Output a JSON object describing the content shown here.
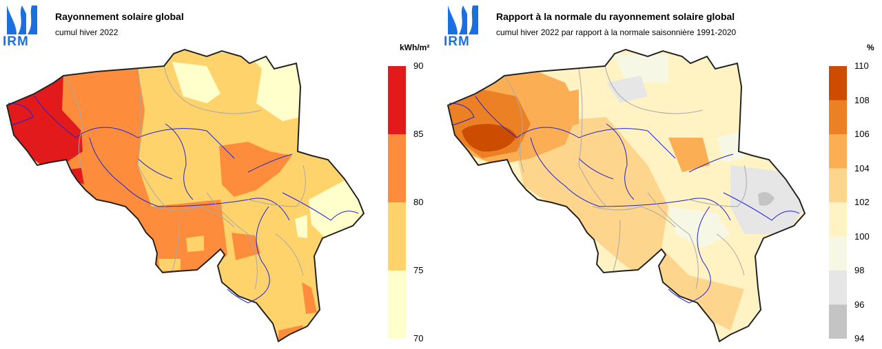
{
  "left": {
    "logo_text": "IRM",
    "title": "Rayonnement solaire global",
    "subtitle": "cumul hiver 2022",
    "unit": "kWh/m²",
    "legend": {
      "ticks": [
        "90",
        "85",
        "80",
        "75",
        "70"
      ],
      "colors": [
        "#e31a1c",
        "#fd8d3c",
        "#fed36b",
        "#ffffcc"
      ]
    }
  },
  "right": {
    "logo_text": "IRM",
    "title": "Rapport à la normale du rayonnement solaire global",
    "subtitle": "cumul hiver 2022 par rapport à la normale saisonnière 1991-2020",
    "unit": "%",
    "legend": {
      "ticks": [
        "110",
        "108",
        "106",
        "104",
        "102",
        "100",
        "98",
        "96",
        "94"
      ],
      "colors": [
        "#cc4c02",
        "#ec8024",
        "#fcae54",
        "#fed58c",
        "#fff3c4",
        "#f7f7e6",
        "#e6e6e6",
        "#c4c4c4"
      ]
    }
  }
}
